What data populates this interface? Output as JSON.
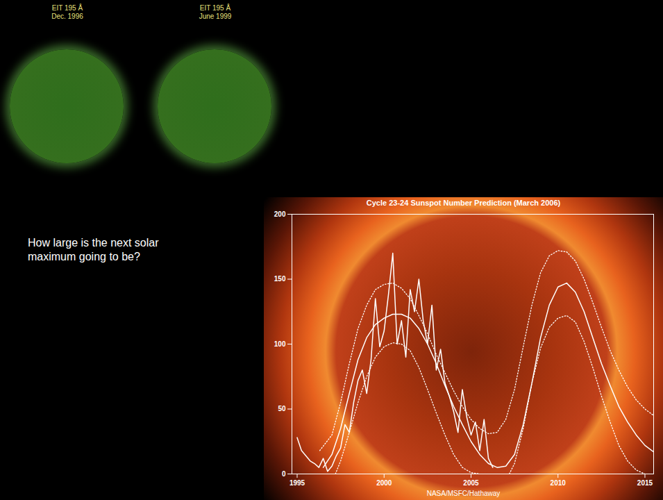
{
  "panels": [
    {
      "title": "EIT 195 Å",
      "subtitle": "Dec. 1996"
    },
    {
      "title": "EIT 195 Å",
      "subtitle": "June 1999"
    }
  ],
  "text": "How large is the next solar maximum going to be?",
  "chart_data": {
    "type": "line",
    "title": "Cycle 23-24 Sunspot Number Prediction (March 2006)",
    "caption": "NASA/MSFC/Hathaway",
    "xlim": [
      1994.7,
      2015.5
    ],
    "xticks": [
      1995,
      2000,
      2005,
      2010,
      2015
    ],
    "ylim": [
      0,
      200
    ],
    "yticks": [
      0,
      50,
      100,
      150,
      200
    ],
    "grid": false,
    "series": [
      {
        "color": "#ffffff",
        "line_style": "solid",
        "x": [
          1995.0,
          1995.25,
          1995.5,
          1995.75,
          1996.0,
          1996.25,
          1996.5,
          1996.75,
          1997.0,
          1997.25,
          1997.5,
          1997.75,
          1998.0,
          1998.25,
          1998.5,
          1998.75,
          1999.0,
          1999.25,
          1999.5,
          1999.75,
          2000.0,
          2000.25,
          2000.5,
          2000.75,
          2001.0,
          2001.25,
          2001.5,
          2001.75,
          2002.0,
          2002.25,
          2002.5,
          2002.75,
          2003.0,
          2003.25,
          2003.5,
          2003.75,
          2004.0,
          2004.25,
          2004.5,
          2004.75,
          2005.0,
          2005.25,
          2005.5,
          2005.75,
          2006.0,
          2006.25
        ],
        "values": [
          28,
          18,
          14,
          10,
          8,
          5,
          12,
          2,
          6,
          14,
          20,
          38,
          32,
          55,
          72,
          80,
          62,
          88,
          135,
          98,
          110,
          138,
          170,
          100,
          118,
          90,
          142,
          125,
          150,
          118,
          100,
          130,
          80,
          96,
          70,
          60,
          48,
          32,
          65,
          44,
          30,
          40,
          18,
          42,
          12,
          5
        ]
      },
      {
        "color": "#ffffff",
        "line_style": "solid",
        "x": [
          1996.5,
          1997,
          1997.5,
          1998,
          1998.5,
          1999,
          1999.5,
          2000,
          2000.5,
          2001,
          2001.5,
          2002,
          2002.5,
          2003,
          2003.5,
          2004,
          2004.5,
          2005,
          2005.5,
          2006,
          2006.5,
          2007,
          2007.5,
          2008,
          2008.5,
          2009,
          2009.5,
          2010,
          2010.5,
          2011,
          2011.5,
          2012,
          2012.5,
          2013,
          2013.5,
          2014,
          2014.5,
          2015,
          2015.5
        ],
        "values": [
          5,
          15,
          35,
          62,
          88,
          105,
          115,
          120,
          123,
          123,
          120,
          112,
          100,
          85,
          68,
          52,
          38,
          25,
          15,
          8,
          5,
          6,
          15,
          38,
          70,
          105,
          130,
          144,
          147,
          140,
          125,
          105,
          85,
          68,
          52,
          40,
          30,
          22,
          17
        ]
      },
      {
        "color": "#ffffff",
        "line_style": "dotted",
        "x": [
          1996.3,
          1997,
          1997.5,
          1998,
          1998.5,
          1999,
          1999.5,
          2000,
          2000.5,
          2001,
          2001.5,
          2002,
          2002.5,
          2003,
          2003.5,
          2004,
          2004.5,
          2005,
          2005.5,
          2006,
          2006.5,
          2007,
          2007.5,
          2008,
          2008.5,
          2009,
          2009.5,
          2010,
          2010.5,
          2011,
          2011.5,
          2012,
          2012.5,
          2013,
          2013.5,
          2014,
          2014.5,
          2015,
          2015.5
        ],
        "values": [
          18,
          30,
          55,
          85,
          112,
          130,
          142,
          146,
          147,
          143,
          135,
          122,
          108,
          92,
          78,
          64,
          52,
          42,
          35,
          31,
          32,
          42,
          65,
          98,
          130,
          155,
          168,
          172,
          171,
          164,
          150,
          132,
          113,
          95,
          80,
          67,
          57,
          50,
          45
        ]
      },
      {
        "color": "#ffffff",
        "line_style": "dotted",
        "x": [
          1997.2,
          1997.5,
          1998,
          1998.5,
          1999,
          1999.5,
          2000,
          2000.5,
          2001,
          2001.5,
          2002,
          2002.5,
          2003,
          2003.5,
          2004,
          2004.5,
          2005,
          2005.5,
          2006.3,
          2007.2,
          2007.5,
          2008,
          2008.5,
          2009,
          2009.5,
          2010,
          2010.5,
          2011,
          2011.5,
          2012,
          2012.5,
          2013,
          2013.5,
          2014,
          2014.5,
          2015
        ],
        "values": [
          0,
          10,
          32,
          55,
          75,
          90,
          98,
          101,
          100,
          95,
          82,
          65,
          47,
          30,
          15,
          5,
          1,
          0,
          null,
          0,
          8,
          35,
          70,
          97,
          113,
          120,
          122,
          117,
          102,
          82,
          60,
          40,
          22,
          10,
          3,
          0
        ]
      }
    ]
  }
}
